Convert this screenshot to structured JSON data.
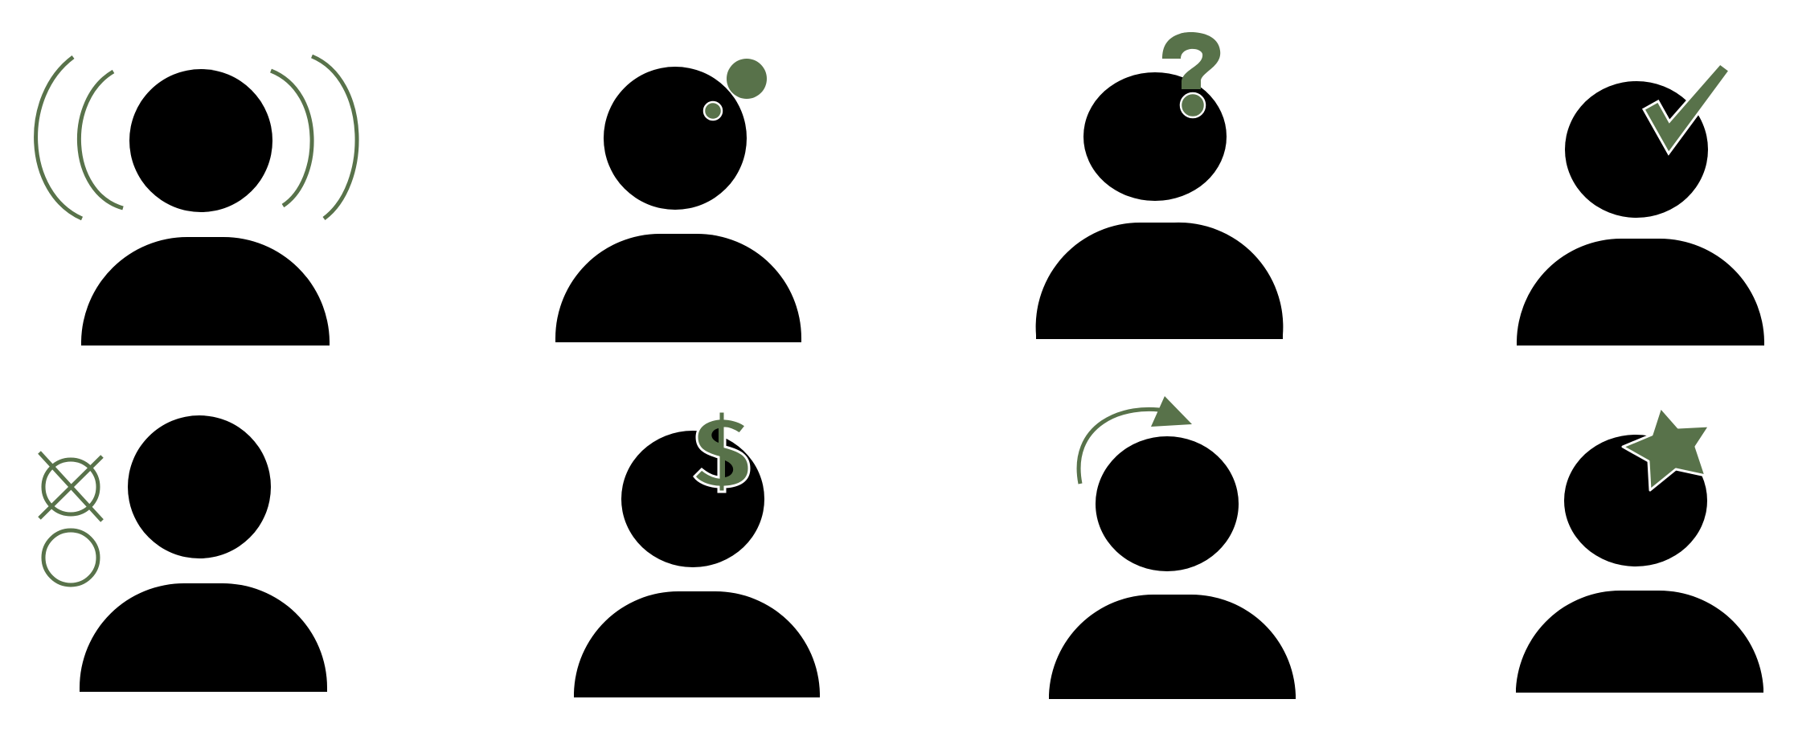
{
  "colors": {
    "silhouette": "#000000",
    "accent": "#58724a",
    "outline": "#ffffff",
    "background": "#ffffff"
  },
  "icons": [
    {
      "name": "person-sound-waves-icon",
      "overlay": "sound-waves"
    },
    {
      "name": "person-thought-dots-icon",
      "overlay": "thought-dots"
    },
    {
      "name": "person-question-icon",
      "overlay": "question-mark",
      "glyph": "?"
    },
    {
      "name": "person-checkmark-icon",
      "overlay": "checkmark"
    },
    {
      "name": "person-crossed-circles-icon",
      "overlay": "crossed-circles"
    },
    {
      "name": "person-dollar-icon",
      "overlay": "dollar-sign",
      "glyph": "$"
    },
    {
      "name": "person-refresh-arrow-icon",
      "overlay": "curved-arrow"
    },
    {
      "name": "person-star-icon",
      "overlay": "star"
    }
  ]
}
